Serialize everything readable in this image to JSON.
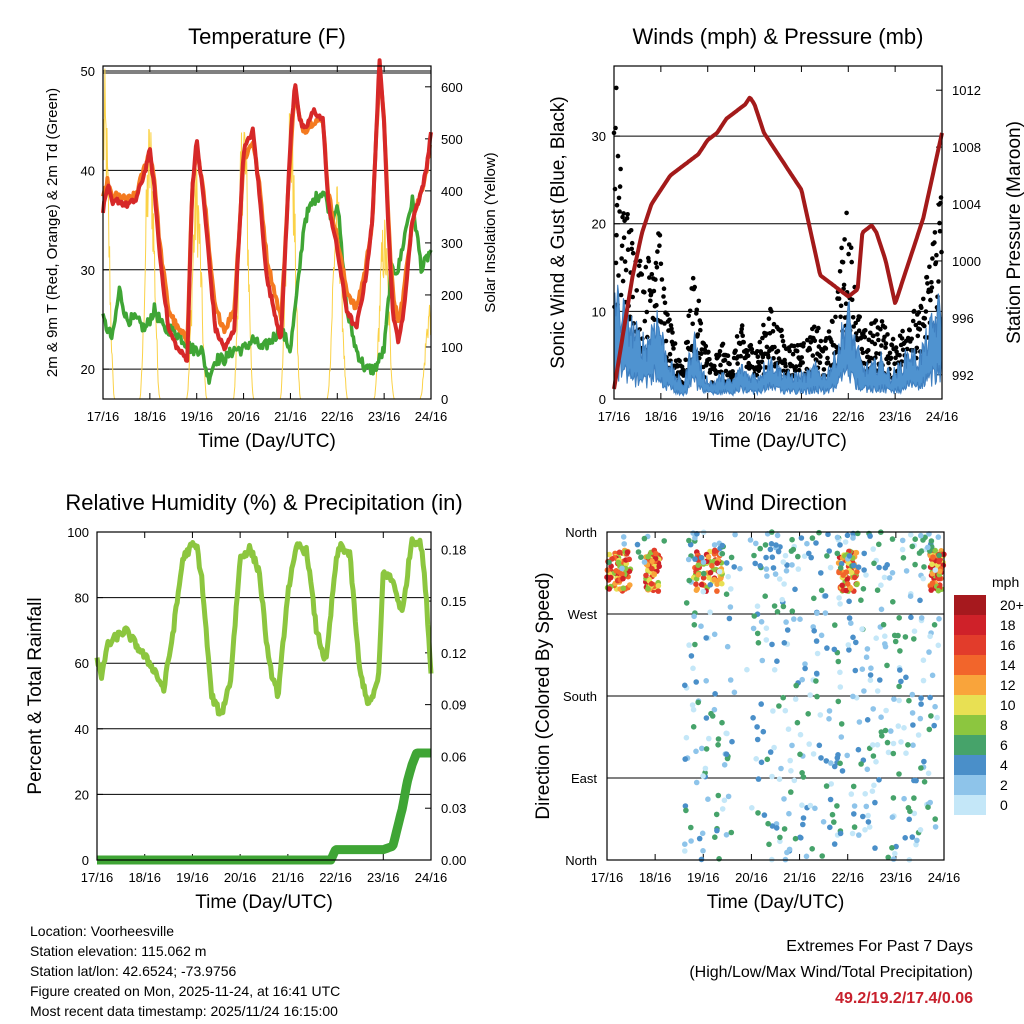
{
  "chart_data": [
    {
      "type": "line",
      "title": "Temperature (F)",
      "xlabel": "Time (Day/UTC)",
      "ylabel": "2m & 9m T (Red, Orange) & 2m Td (Green)",
      "y2label": "Solar Insolation (Yellow)",
      "x_ticks": [
        "17/16",
        "18/16",
        "19/16",
        "20/16",
        "21/16",
        "22/16",
        "23/16",
        "24/16"
      ],
      "ylim": [
        17,
        50.5
      ],
      "y_ticks": [
        20,
        30,
        40,
        50
      ],
      "y2lim": [
        0,
        640
      ],
      "y2_ticks": [
        0,
        100,
        200,
        300,
        400,
        500,
        600
      ],
      "series": [
        {
          "name": "2m T",
          "color": "#d62828",
          "x": [
            0,
            0.1,
            0.2,
            0.3,
            0.5,
            0.7,
            0.9,
            1.0,
            1.1,
            1.2,
            1.4,
            1.6,
            1.8,
            1.9,
            2.0,
            2.15,
            2.3,
            2.4,
            2.6,
            2.8,
            3.0,
            3.2,
            3.35,
            3.5,
            3.6,
            3.8,
            4.0,
            4.1,
            4.2,
            4.3,
            4.5,
            4.7,
            4.8,
            5.0,
            5.2,
            5.4,
            5.6,
            5.75,
            5.9,
            6.0,
            6.1,
            6.2,
            6.3,
            6.4,
            6.6,
            6.8,
            6.9,
            7.0
          ],
          "values": [
            36,
            38.5,
            36.5,
            37,
            36.5,
            37,
            40,
            42,
            38,
            32,
            24,
            22,
            21,
            38,
            43,
            37,
            29,
            24,
            22,
            24,
            42,
            44,
            37,
            29,
            27,
            23,
            43,
            49,
            45,
            44,
            46,
            45,
            37,
            32,
            26,
            24,
            29,
            35,
            51,
            45,
            33,
            25,
            23,
            25,
            35,
            38,
            40,
            44
          ]
        },
        {
          "name": "9m T",
          "color": "#f47a20",
          "x": [
            0,
            0.1,
            0.2,
            0.3,
            0.5,
            0.7,
            0.9,
            1.0,
            1.1,
            1.2,
            1.4,
            1.6,
            1.8,
            1.9,
            2.0,
            2.15,
            2.3,
            2.4,
            2.6,
            2.8,
            3.0,
            3.2,
            3.35,
            3.5,
            3.6,
            3.8,
            4.0,
            4.1,
            4.2,
            4.3,
            4.5,
            4.7,
            4.8,
            5.0,
            5.2,
            5.4,
            5.6,
            5.75,
            5.9,
            6.0,
            6.1,
            6.2,
            6.3,
            6.4,
            6.6,
            6.8,
            6.9,
            7.0
          ],
          "values": [
            37,
            39,
            37,
            37.5,
            37,
            37.5,
            40.5,
            42,
            39,
            33,
            26,
            24,
            23,
            38,
            42,
            38,
            30,
            26,
            24,
            26,
            41,
            43,
            38,
            31,
            29,
            25,
            42,
            48,
            45,
            44,
            45,
            45,
            38,
            33,
            28,
            26,
            30,
            35,
            50,
            45,
            34,
            27,
            25,
            27,
            35,
            38,
            40,
            43
          ]
        },
        {
          "name": "2m Td",
          "color": "#3fa535",
          "x": [
            0,
            0.2,
            0.35,
            0.5,
            0.7,
            0.9,
            1.1,
            1.3,
            1.5,
            1.7,
            1.9,
            2.1,
            2.25,
            2.4,
            2.6,
            2.8,
            3.0,
            3.2,
            3.4,
            3.6,
            3.8,
            4.0,
            4.15,
            4.3,
            4.5,
            4.7,
            4.9,
            5.0,
            5.2,
            5.4,
            5.6,
            5.8,
            6.0,
            6.15,
            6.3,
            6.5,
            6.6,
            6.8,
            7.0
          ],
          "values": [
            25,
            23,
            28,
            25,
            25,
            24,
            26,
            24,
            24,
            23,
            22,
            22,
            19,
            21,
            21,
            22,
            22,
            23,
            22,
            23,
            24,
            22,
            28,
            35,
            37,
            38,
            35,
            37,
            26,
            22,
            20,
            20,
            22,
            30,
            30,
            35,
            37,
            30,
            32
          ]
        },
        {
          "name": "Solar",
          "color": "#fbd247",
          "axis": "y2",
          "peaks": [
            {
              "x": 0.03,
              "peak": 640
            },
            {
              "x": 1.0,
              "peak": 560
            },
            {
              "x": 2.0,
              "peak": 460
            },
            {
              "x": 3.0,
              "peak": 600
            },
            {
              "x": 4.0,
              "peak": 620
            },
            {
              "x": 5.0,
              "peak": 420
            },
            {
              "x": 6.0,
              "peak": 360
            },
            {
              "x": 6.98,
              "peak": 200
            }
          ]
        }
      ]
    },
    {
      "type": "scatter",
      "title": "Winds (mph) & Pressure (mb)",
      "xlabel": "Time (Day/UTC)",
      "ylabel": "Sonic Wind & Gust (Blue, Black)",
      "y2label": "Station Pressure (Maroon)",
      "x_ticks": [
        "17/16",
        "18/16",
        "19/16",
        "20/16",
        "21/16",
        "22/16",
        "23/16",
        "24/16"
      ],
      "ylim": [
        0,
        38
      ],
      "y_ticks": [
        0,
        10,
        20,
        30
      ],
      "y2lim": [
        990.3,
        1013.7
      ],
      "y2_ticks": [
        992,
        996,
        1000,
        1004,
        1008,
        1012
      ],
      "wind_envelope": {
        "x": [
          0,
          0.1,
          0.3,
          0.5,
          0.7,
          0.9,
          1.1,
          1.3,
          1.5,
          1.7,
          1.9,
          2.1,
          2.3,
          2.5,
          2.7,
          2.9,
          3.1,
          3.3,
          3.5,
          3.7,
          3.9,
          4.1,
          4.3,
          4.5,
          4.7,
          4.9,
          5.0,
          5.1,
          5.3,
          5.5,
          5.7,
          5.9,
          6.1,
          6.3,
          6.5,
          6.7,
          6.9,
          7.0
        ],
        "values": [
          14,
          12,
          10,
          8,
          7,
          11,
          6,
          3,
          2,
          8,
          3,
          2,
          3,
          2,
          4,
          3,
          3,
          5,
          4,
          3,
          3,
          3,
          4,
          3,
          5,
          9,
          11,
          8,
          4,
          4,
          5,
          3,
          4,
          6,
          5,
          8,
          11,
          12
        ]
      },
      "gust_envelope": {
        "x": [
          0,
          0.1,
          0.3,
          0.5,
          0.7,
          0.9,
          1.1,
          1.3,
          1.5,
          1.7,
          1.9,
          2.1,
          2.3,
          2.5,
          2.7,
          2.9,
          3.1,
          3.3,
          3.5,
          3.7,
          3.9,
          4.1,
          4.3,
          4.5,
          4.7,
          4.9,
          5.0,
          5.1,
          5.3,
          5.5,
          5.7,
          5.9,
          6.1,
          6.3,
          6.5,
          6.7,
          6.9,
          7.0
        ],
        "values": [
          30,
          26,
          20,
          16,
          14,
          22,
          10,
          6,
          4,
          14,
          7,
          4,
          6,
          4,
          8,
          6,
          6,
          10,
          8,
          6,
          6,
          6,
          8,
          6,
          9,
          18,
          21,
          14,
          7,
          8,
          9,
          6,
          7,
          10,
          9,
          14,
          22,
          24
        ]
      },
      "pressure": {
        "x": [
          0,
          0.2,
          0.4,
          0.6,
          0.8,
          1.0,
          1.2,
          1.4,
          1.6,
          1.8,
          2.0,
          2.2,
          2.4,
          2.6,
          2.8,
          2.9,
          3.0,
          3.2,
          3.4,
          3.6,
          3.8,
          4.0,
          4.2,
          4.4,
          4.6,
          4.8,
          5.0,
          5.2,
          5.3,
          5.5,
          5.6,
          5.8,
          6.0,
          6.2,
          6.4,
          6.6,
          6.8,
          7.0
        ],
        "values": [
          991,
          995,
          999,
          1002,
          1004,
          1005,
          1006,
          1006.5,
          1007,
          1007.5,
          1008.5,
          1009,
          1010,
          1010.5,
          1011,
          1011.5,
          1011,
          1009,
          1008,
          1007,
          1006,
          1005,
          1002,
          999,
          998.5,
          998,
          997.5,
          998,
          1002,
          1002.5,
          1002,
          1000,
          997,
          999,
          1001,
          1003,
          1006,
          1009
        ]
      },
      "max_gust": 35.5
    },
    {
      "type": "line",
      "title": "Relative Humidity (%) & Precipitation (in)",
      "xlabel": "Time (Day/UTC)",
      "ylabel": "Percent & Total Rainfall",
      "x_ticks": [
        "17/16",
        "18/16",
        "19/16",
        "20/16",
        "21/16",
        "22/16",
        "23/16",
        "24/16"
      ],
      "ylim": [
        0,
        100
      ],
      "y_ticks": [
        0,
        20,
        40,
        60,
        80,
        100
      ],
      "y2lim": [
        0,
        0.19
      ],
      "y2_ticks": [
        "0.00",
        "0.03",
        "0.06",
        "0.09",
        "0.12",
        "0.15",
        "0.18"
      ],
      "series": [
        {
          "name": "RH",
          "color": "#8cc63f",
          "x": [
            0,
            0.1,
            0.2,
            0.4,
            0.6,
            0.8,
            1.0,
            1.2,
            1.4,
            1.6,
            1.8,
            2.0,
            2.1,
            2.2,
            2.4,
            2.6,
            2.8,
            3.0,
            3.2,
            3.4,
            3.6,
            3.8,
            4.0,
            4.2,
            4.4,
            4.6,
            4.8,
            5.0,
            5.1,
            5.3,
            5.5,
            5.7,
            5.9,
            6.0,
            6.2,
            6.4,
            6.6,
            6.8,
            6.9,
            7.0
          ],
          "values": [
            62,
            55,
            65,
            68,
            70,
            66,
            62,
            58,
            52,
            70,
            92,
            96,
            95,
            85,
            50,
            44,
            55,
            92,
            95,
            88,
            60,
            50,
            82,
            96,
            94,
            70,
            60,
            90,
            96,
            93,
            58,
            47,
            55,
            88,
            85,
            75,
            98,
            96,
            80,
            57
          ]
        },
        {
          "name": "Precip",
          "color": "#3fa535",
          "axis": "y2",
          "x": [
            0,
            4.9,
            5.0,
            6.0,
            6.2,
            6.4,
            6.5,
            6.6,
            6.7,
            7.0
          ],
          "values": [
            0,
            0,
            0.006,
            0.006,
            0.008,
            0.03,
            0.045,
            0.055,
            0.062,
            0.062
          ]
        }
      ]
    },
    {
      "type": "scatter",
      "title": "Wind Direction",
      "xlabel": "Time (Day/UTC)",
      "ylabel": "Direction (Colored By Speed)",
      "x_ticks": [
        "17/16",
        "18/16",
        "19/16",
        "20/16",
        "21/16",
        "22/16",
        "23/16",
        "24/16"
      ],
      "y_ticks": [
        "North",
        "West",
        "South",
        "East",
        "North"
      ],
      "legend_title": "mph",
      "legend_labels": [
        "20+",
        "18",
        "16",
        "14",
        "12",
        "10",
        "8",
        "6",
        "4",
        "2",
        "0"
      ],
      "legend_colors": [
        "#a6191e",
        "#cf2129",
        "#e23c2b",
        "#f2652b",
        "#f9a43b",
        "#e8e053",
        "#8cc63f",
        "#46a36a",
        "#4a8fc9",
        "#8ec4ea",
        "#c4e7f8"
      ]
    }
  ],
  "info": {
    "location": "Location: Voorheesville",
    "elevation": "Station elevation: 115.062 m",
    "latlon": "Station lat/lon: 42.6524; -73.9756",
    "created": "Figure created on Mon, 2025-11-24, at 16:41 UTC",
    "recent": "Most recent data timestamp: 2025/11/24 16:15:00"
  },
  "extremes": {
    "title": "Extremes For Past 7 Days",
    "subtitle": "(High/Low/Max Wind/Total Precipitation)",
    "values": "49.2/19.2/17.4/0.06"
  }
}
